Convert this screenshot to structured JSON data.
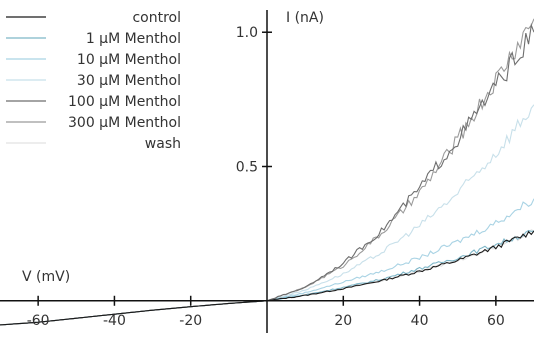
{
  "chart_data": {
    "type": "line",
    "xlabel": "V (mV)",
    "ylabel": "I (nA)",
    "xlim": [
      -70,
      70
    ],
    "ylim": [
      -0.12,
      1.12
    ],
    "x_ticks": [
      -60,
      -40,
      -20,
      20,
      40,
      60
    ],
    "y_ticks": [
      0.5,
      1.0
    ],
    "x_tick_labels": [
      "-60",
      "-40",
      "-20",
      "20",
      "40",
      "60"
    ],
    "y_tick_labels": [
      "0.5",
      "1.0"
    ],
    "grid": false,
    "legend_position": "top-left",
    "series": [
      {
        "name": "control",
        "color": "#1a1a1a",
        "x": [
          -70,
          -60,
          -50,
          -40,
          -30,
          -20,
          -10,
          0,
          10,
          20,
          30,
          40,
          50,
          60,
          70
        ],
        "y": [
          -0.09,
          -0.08,
          -0.065,
          -0.05,
          -0.035,
          -0.022,
          -0.01,
          0,
          0.02,
          0.045,
          0.075,
          0.11,
          0.15,
          0.2,
          0.26
        ]
      },
      {
        "name": "1 µM Menthol",
        "color": "#7eb6c8",
        "x": [
          -70,
          -60,
          -50,
          -40,
          -30,
          -20,
          -10,
          0,
          10,
          20,
          30,
          40,
          50,
          60,
          70
        ],
        "y": [
          -0.09,
          -0.08,
          -0.065,
          -0.05,
          -0.035,
          -0.022,
          -0.01,
          0,
          0.022,
          0.05,
          0.08,
          0.12,
          0.16,
          0.21,
          0.26
        ]
      },
      {
        "name": "10 µM Menthol",
        "color": "#a9d3e4",
        "x": [
          -70,
          -60,
          -50,
          -40,
          -30,
          -20,
          -10,
          0,
          10,
          20,
          30,
          40,
          50,
          60,
          70
        ],
        "y": [
          -0.09,
          -0.08,
          -0.065,
          -0.05,
          -0.035,
          -0.022,
          -0.01,
          0,
          0.03,
          0.07,
          0.11,
          0.16,
          0.22,
          0.29,
          0.38
        ]
      },
      {
        "name": "30 µM Menthol",
        "color": "#c8e0ea",
        "x": [
          -70,
          -60,
          -50,
          -40,
          -30,
          -20,
          -10,
          0,
          10,
          20,
          30,
          40,
          50,
          60,
          70
        ],
        "y": [
          -0.09,
          -0.08,
          -0.065,
          -0.05,
          -0.035,
          -0.022,
          -0.01,
          0,
          0.04,
          0.1,
          0.18,
          0.28,
          0.4,
          0.55,
          0.73
        ]
      },
      {
        "name": "100 µM Menthol",
        "color": "#6e6e6e",
        "x": [
          -70,
          -60,
          -50,
          -40,
          -30,
          -20,
          -10,
          0,
          10,
          20,
          30,
          40,
          50,
          60,
          70
        ],
        "y": [
          -0.09,
          -0.08,
          -0.065,
          -0.05,
          -0.035,
          -0.022,
          -0.01,
          0,
          0.05,
          0.14,
          0.26,
          0.42,
          0.6,
          0.8,
          1.0
        ]
      },
      {
        "name": "300 µM Menthol",
        "color": "#9a9a9a",
        "x": [
          -70,
          -60,
          -50,
          -40,
          -30,
          -20,
          -10,
          0,
          10,
          20,
          30,
          40,
          50,
          60,
          70
        ],
        "y": [
          -0.09,
          -0.08,
          -0.065,
          -0.05,
          -0.035,
          -0.022,
          -0.01,
          0,
          0.05,
          0.13,
          0.25,
          0.4,
          0.6,
          0.82,
          1.05
        ]
      },
      {
        "name": "wash",
        "color": "#e2e2e2",
        "x": [
          -70,
          -60,
          -50,
          -40,
          -30,
          -20,
          -10,
          0,
          10,
          20,
          30,
          40,
          50,
          60,
          70
        ],
        "y": [
          -0.09,
          -0.08,
          -0.065,
          -0.05,
          -0.035,
          -0.022,
          -0.01,
          0,
          0.02,
          0.045,
          0.075,
          0.11,
          0.15,
          0.2,
          0.26
        ]
      }
    ]
  }
}
